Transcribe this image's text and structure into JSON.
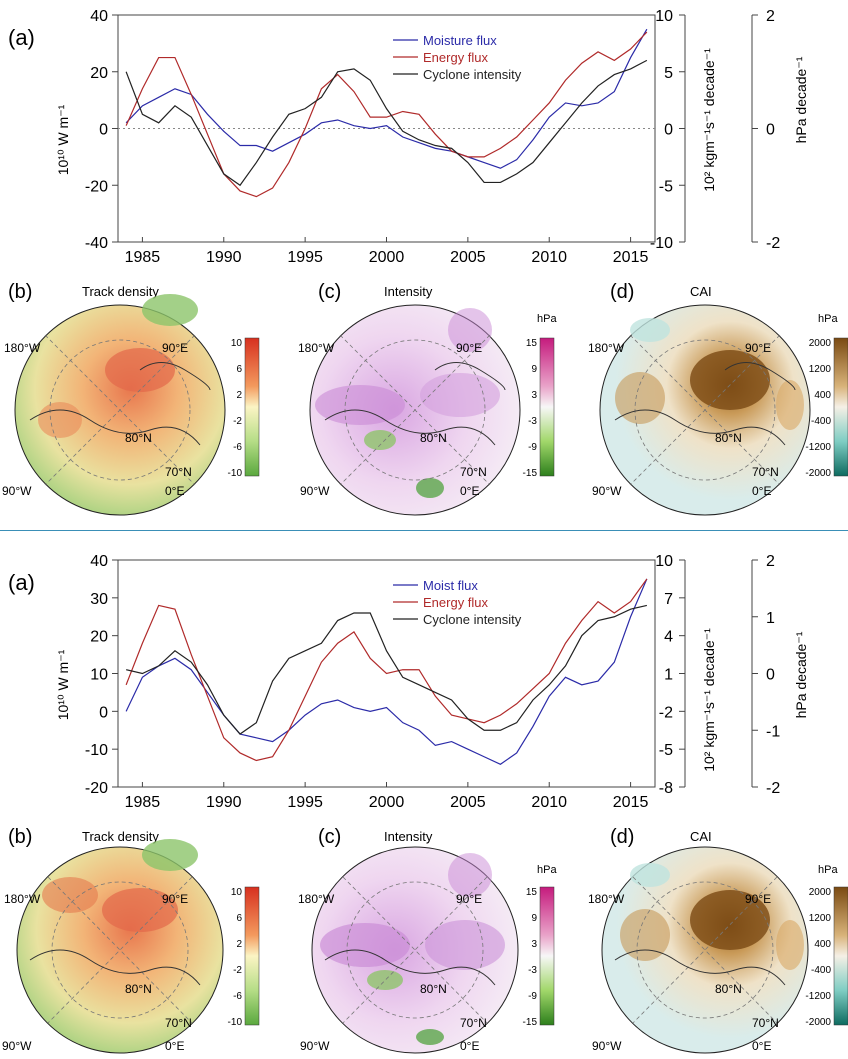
{
  "top": {
    "panel_a_label": "(a)",
    "left_axis_title": "10¹⁰ W m⁻¹",
    "mid_axis_title": "10² kgm⁻¹s⁻¹ decade⁻¹",
    "right_axis_title": "hPa decade⁻¹",
    "map_b_label": "(b)",
    "map_b_title": "Track density",
    "map_c_label": "(c)",
    "map_c_title": "Intensity",
    "map_c_unit": "hPa",
    "map_d_label": "(d)",
    "map_d_title": "CAI",
    "map_d_unit": "hPa",
    "lon_180": "180°W",
    "lon_90e": "90°E",
    "lon_90w": "90°W",
    "lon_0": "0°E",
    "lat_80": "80°N",
    "lat_70": "70°N"
  },
  "bottom": {
    "panel_a_label": "(a)",
    "left_axis_title": "10¹⁰ W m⁻¹",
    "mid_axis_title": "10² kgm⁻¹s⁻¹ decade⁻¹",
    "right_axis_title": "hPa decade⁻¹",
    "map_b_label": "(b)",
    "map_b_title": "Track density",
    "map_c_label": "(c)",
    "map_c_title": "Intensity",
    "map_c_unit": "hPa",
    "map_d_label": "(d)",
    "map_d_title": "CAI",
    "map_d_unit": "hPa",
    "lon_180": "180°W",
    "lon_90e": "90°E",
    "lon_90w": "90°W",
    "lon_0": "0°E",
    "lat_80": "80°N",
    "lat_70": "70°N"
  },
  "colors": {
    "moisture": "#2b2ba8",
    "energy": "#b02a2a",
    "cyclone": "#222222"
  },
  "chart_data": [
    {
      "type": "line",
      "xlim": [
        1983.5,
        2016.5
      ],
      "x_ticks": [
        "1985",
        "1990",
        "1995",
        "2000",
        "2005",
        "2010",
        "2015"
      ],
      "ylim": [
        -40,
        40
      ],
      "y_ticks": [
        "40",
        "20",
        "0",
        "-20",
        "-40"
      ],
      "mid_ticks": [
        "10",
        "5",
        "0",
        "-5",
        "-10"
      ],
      "right_ticks": [
        "2",
        "0",
        "-2"
      ],
      "legend_position": "top-center",
      "zero_line": true,
      "x": [
        1984,
        1985,
        1986,
        1987,
        1988,
        1989,
        1990,
        1991,
        1992,
        1993,
        1994,
        1995,
        1996,
        1997,
        1998,
        1999,
        2000,
        2001,
        2002,
        2003,
        2004,
        2005,
        2006,
        2007,
        2008,
        2009,
        2010,
        2011,
        2012,
        2013,
        2014,
        2015,
        2016
      ],
      "series": [
        {
          "name": "Moisture flux",
          "color": "#2b2ba8",
          "values": [
            2,
            8,
            11,
            14,
            12,
            5,
            -1,
            -6,
            -6,
            -8,
            -5,
            -2,
            2,
            3,
            1,
            0,
            1,
            -3,
            -5,
            -7,
            -8,
            -10,
            -12,
            -14,
            -11,
            -4,
            4,
            9,
            8,
            9,
            13,
            25,
            35
          ]
        },
        {
          "name": "Energy flux",
          "color": "#b02a2a",
          "values": [
            1,
            14,
            25,
            25,
            12,
            -2,
            -16,
            -22,
            -24,
            -21,
            -12,
            0,
            14,
            19,
            13,
            4,
            4,
            6,
            5,
            -2,
            -8,
            -10,
            -10,
            -7,
            -3,
            3,
            9,
            17,
            23,
            27,
            24,
            28,
            34
          ]
        },
        {
          "name": "Cyclone intensity",
          "color": "#222222",
          "values": [
            20,
            5,
            2,
            8,
            4,
            -6,
            -16,
            -20,
            -12,
            -3,
            5,
            7,
            11,
            20,
            21,
            17,
            7,
            -1,
            -4,
            -6,
            -7,
            -12,
            -19,
            -19,
            -16,
            -12,
            -5,
            2,
            9,
            15,
            19,
            21,
            24
          ]
        }
      ]
    },
    {
      "type": "line",
      "xlim": [
        1983.5,
        2016.5
      ],
      "x_ticks": [
        "1985",
        "1990",
        "1995",
        "2000",
        "2005",
        "2010",
        "2015"
      ],
      "ylim": [
        -20,
        40
      ],
      "y_ticks": [
        "40",
        "30",
        "20",
        "10",
        "0",
        "-10",
        "-20"
      ],
      "mid_ticks": [
        "10",
        "7",
        "4",
        "1",
        "-2",
        "-5",
        "-8"
      ],
      "right_ticks": [
        "2",
        "1",
        "0",
        "-1",
        "-2"
      ],
      "legend_position": "top-center",
      "zero_line": false,
      "x": [
        1984,
        1985,
        1986,
        1987,
        1988,
        1989,
        1990,
        1991,
        1992,
        1993,
        1994,
        1995,
        1996,
        1997,
        1998,
        1999,
        2000,
        2001,
        2002,
        2003,
        2004,
        2005,
        2006,
        2007,
        2008,
        2009,
        2010,
        2011,
        2012,
        2013,
        2014,
        2015,
        2016
      ],
      "series": [
        {
          "name": "Moist flux",
          "color": "#2b2ba8",
          "values": [
            0,
            9,
            12,
            14,
            11,
            5,
            -1,
            -6,
            -7,
            -8,
            -5,
            -1,
            2,
            3,
            1,
            0,
            1,
            -3,
            -5,
            -9,
            -8,
            -10,
            -12,
            -14,
            -11,
            -4,
            4,
            9,
            7,
            8,
            13,
            25,
            35
          ]
        },
        {
          "name": "Energy flux",
          "color": "#b02a2a",
          "values": [
            7,
            18,
            28,
            27,
            15,
            4,
            -7,
            -11,
            -13,
            -12,
            -5,
            4,
            13,
            18,
            21,
            14,
            10,
            11,
            11,
            4,
            -1,
            -2,
            -3,
            -1,
            2,
            6,
            10,
            18,
            24,
            29,
            26,
            29,
            35
          ]
        },
        {
          "name": "Cyclone intensity",
          "color": "#222222",
          "values": [
            11,
            10,
            12,
            16,
            13,
            7,
            -1,
            -6,
            -3,
            8,
            14,
            16,
            18,
            24,
            26,
            26,
            16,
            9,
            7,
            5,
            3,
            -2,
            -5,
            -5,
            -3,
            3,
            7,
            12,
            20,
            24,
            25,
            27,
            28
          ]
        }
      ]
    }
  ],
  "maps": {
    "track_ticks": [
      "10",
      "6",
      "2",
      "-2",
      "-6",
      "-10"
    ],
    "intensity_ticks": [
      "15",
      "9",
      "3",
      "-3",
      "-9",
      "-15"
    ],
    "cai_ticks": [
      "2000",
      "1200",
      "400",
      "-400",
      "-1200",
      "-2000"
    ]
  }
}
